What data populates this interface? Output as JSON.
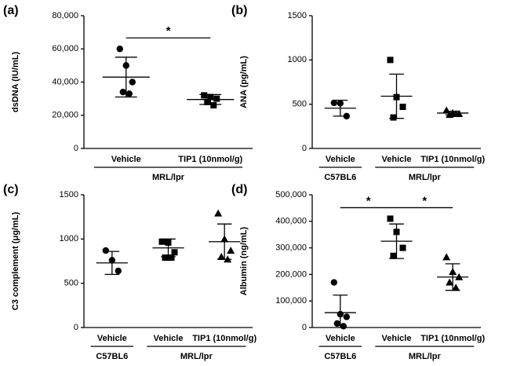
{
  "chart_data": [
    {
      "type": "dotplot",
      "label": "(a)",
      "ylabel": "dsDNA (IU/mL)",
      "ylim": [
        0,
        80000
      ],
      "yticks": [
        0,
        {
          "value": 20000,
          "label": "20,000"
        },
        {
          "value": 40000,
          "label": "40,000"
        },
        {
          "value": 60000,
          "label": "60,000"
        },
        {
          "value": 80000,
          "label": "80,000"
        }
      ],
      "strains": [
        {
          "name": "MRL/lpr",
          "groups": [
            {
              "name": "Vehicle",
              "marker": "circle",
              "values": [
                60000,
                50000,
                40000,
                34000,
                33000
              ],
              "mean": 43000,
              "sd": 12000
            },
            {
              "name": "TIP1 (10nmol/g)",
              "marker": "square",
              "values": [
                32000,
                31000,
                30000,
                28000,
                26000
              ],
              "mean": 29500,
              "sd": 3000
            }
          ]
        }
      ],
      "significance": [
        {
          "label": "*",
          "between": [
            0,
            1
          ]
        }
      ]
    },
    {
      "type": "dotplot",
      "label": "(b)",
      "ylabel": "ANA (pg/mL)",
      "ylim": [
        0,
        1500
      ],
      "yticks": [
        0,
        500,
        1000,
        1500
      ],
      "strains": [
        {
          "name": "C57BL6",
          "groups": [
            {
              "name": "Vehicle",
              "marker": "circle",
              "values": [
                515,
                510,
                365
              ],
              "mean": 455,
              "sd": 90
            }
          ]
        },
        {
          "name": "MRL/lpr",
          "groups": [
            {
              "name": "Vehicle",
              "marker": "square",
              "values": [
                1000,
                580,
                470,
                350
              ],
              "mean": 590,
              "sd": 250
            },
            {
              "name": "TIP1 (10nmol/g)",
              "marker": "triangle",
              "values": [
                430,
                400,
                390,
                380,
                390
              ],
              "mean": 400,
              "sd": 20
            }
          ]
        }
      ],
      "significance": []
    },
    {
      "type": "dotplot",
      "label": "(c)",
      "ylabel": "C3 complement (μg/mL)",
      "ylim": [
        0,
        1500
      ],
      "yticks": [
        0,
        500,
        1000,
        1500
      ],
      "strains": [
        {
          "name": "C57BL6",
          "groups": [
            {
              "name": "Vehicle",
              "marker": "circle",
              "values": [
                870,
                760,
                640
              ],
              "mean": 730,
              "sd": 130
            }
          ]
        },
        {
          "name": "MRL/lpr",
          "groups": [
            {
              "name": "Vehicle",
              "marker": "square",
              "values": [
                970,
                960,
                850,
                790,
                790
              ],
              "mean": 900,
              "sd": 100
            },
            {
              "name": "TIP1 (10nmol/g)",
              "marker": "triangle",
              "values": [
                1290,
                1000,
                870,
                800,
                770
              ],
              "mean": 970,
              "sd": 200
            }
          ]
        }
      ],
      "significance": []
    },
    {
      "type": "dotplot",
      "label": "(d)",
      "ylabel": "Albumin (ng/mL)",
      "ylim": [
        0,
        500000
      ],
      "yticks": [
        0,
        {
          "value": 100000,
          "label": "100,000"
        },
        {
          "value": 200000,
          "label": "200,000"
        },
        {
          "value": 300000,
          "label": "300,000"
        },
        {
          "value": 400000,
          "label": "400,000"
        },
        {
          "value": 500000,
          "label": "500,000"
        }
      ],
      "strains": [
        {
          "name": "C57BL6",
          "groups": [
            {
              "name": "Vehicle",
              "marker": "circle",
              "values": [
                170000,
                50000,
                40000,
                15000,
                5000
              ],
              "mean": 56000,
              "sd": 66000
            }
          ]
        },
        {
          "name": "MRL/lpr",
          "groups": [
            {
              "name": "Vehicle",
              "marker": "square",
              "values": [
                410000,
                360000,
                300000,
                270000
              ],
              "mean": 325000,
              "sd": 65000
            },
            {
              "name": "TIP1 (10nmol/g)",
              "marker": "triangle",
              "values": [
                265000,
                210000,
                190000,
                170000,
                150000
              ],
              "mean": 190000,
              "sd": 50000
            }
          ]
        }
      ],
      "significance": [
        {
          "label": "*",
          "between": [
            0,
            1
          ]
        },
        {
          "label": "*",
          "between": [
            1,
            2
          ]
        }
      ]
    }
  ]
}
